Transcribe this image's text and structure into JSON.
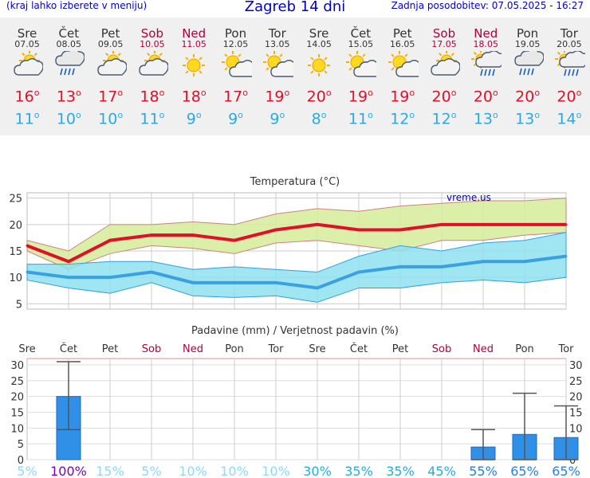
{
  "header": {
    "left_note": "(kraj lahko izberete v meniju)",
    "title": "Zagreb 14 dni",
    "updated": "Zadnja posodobitev: 07.05.2025 - 16:27"
  },
  "days": [
    {
      "name": "Sre",
      "date": "07.05",
      "weekend": false,
      "icon": "partly-cloudy-icon",
      "max": "16",
      "min": "11"
    },
    {
      "name": "Čet",
      "date": "08.05",
      "weekend": false,
      "icon": "rain-cloud-icon",
      "max": "13",
      "min": "10"
    },
    {
      "name": "Pet",
      "date": "09.05",
      "weekend": false,
      "icon": "partly-cloudy-icon",
      "max": "17",
      "min": "10"
    },
    {
      "name": "Sob",
      "date": "10.05",
      "weekend": true,
      "icon": "partly-cloudy-icon",
      "max": "18",
      "min": "11"
    },
    {
      "name": "Ned",
      "date": "11.05",
      "weekend": true,
      "icon": "sun-icon",
      "max": "18",
      "min": "9"
    },
    {
      "name": "Pon",
      "date": "12.05",
      "weekend": false,
      "icon": "sun-cloud-icon",
      "max": "17",
      "min": "9"
    },
    {
      "name": "Tor",
      "date": "13.05",
      "weekend": false,
      "icon": "sun-cloud-icon",
      "max": "19",
      "min": "9"
    },
    {
      "name": "Sre",
      "date": "14.05",
      "weekend": false,
      "icon": "sun-icon",
      "max": "20",
      "min": "8"
    },
    {
      "name": "Čet",
      "date": "15.05",
      "weekend": false,
      "icon": "sun-cloud-icon",
      "max": "19",
      "min": "11"
    },
    {
      "name": "Pet",
      "date": "16.05",
      "weekend": false,
      "icon": "sun-cloud-icon",
      "max": "19",
      "min": "12"
    },
    {
      "name": "Sob",
      "date": "17.05",
      "weekend": true,
      "icon": "partly-cloudy-icon",
      "max": "20",
      "min": "12"
    },
    {
      "name": "Ned",
      "date": "18.05",
      "weekend": true,
      "icon": "sun-rain-icon",
      "max": "20",
      "min": "13"
    },
    {
      "name": "Pon",
      "date": "19.05",
      "weekend": false,
      "icon": "rain-cloud-icon",
      "max": "20",
      "min": "13"
    },
    {
      "name": "Tor",
      "date": "20.05",
      "weekend": false,
      "icon": "sun-rain-icon",
      "max": "20",
      "min": "14"
    }
  ],
  "degree_sign": "o",
  "colors": {
    "max": "#e0102a",
    "min": "#2aaae0",
    "weekend": "#b0003a",
    "bar": "#3090e8",
    "max_band": "#d6ec9a",
    "min_band": "#8ee0f0"
  },
  "chart_data": [
    {
      "type": "line",
      "title": "Temperatura (°C)",
      "watermark": "vreme.us",
      "x": [
        "Sre",
        "Čet",
        "Pet",
        "Sob",
        "Ned",
        "Pon",
        "Tor",
        "Sre",
        "Čet",
        "Pet",
        "Sob",
        "Ned",
        "Pon",
        "Tor"
      ],
      "ylim": [
        4,
        26
      ],
      "yticks": [
        5,
        10,
        15,
        20,
        25
      ],
      "series": [
        {
          "values": [
            16,
            13,
            17,
            18,
            18,
            17,
            19,
            20,
            19,
            19,
            20,
            20,
            20,
            20
          ]
        },
        {
          "values": [
            11,
            10,
            10,
            11,
            9,
            9,
            9,
            8,
            11,
            12,
            12,
            13,
            13,
            14
          ]
        }
      ],
      "bands": [
        {
          "low": [
            15,
            11.5,
            14.5,
            16,
            15.5,
            14.5,
            16.5,
            17,
            16,
            15,
            17,
            17,
            18,
            18.5
          ],
          "high": [
            17,
            15,
            20,
            20,
            20.5,
            20,
            22,
            23,
            22.5,
            23.5,
            24,
            24.5,
            24.5,
            25
          ]
        },
        {
          "low": [
            9.5,
            8,
            7,
            9,
            6.5,
            6.2,
            6.5,
            5.3,
            8,
            8,
            9,
            9.5,
            9,
            10
          ],
          "high": [
            12.5,
            12.5,
            13,
            13,
            11.5,
            12,
            11.5,
            11,
            14,
            16,
            15,
            16.5,
            17,
            18.5
          ]
        }
      ],
      "grid": true
    },
    {
      "type": "bar",
      "title": "Padavine (mm) / Verjetnost padavin (%)",
      "categories": [
        "Sre",
        "Čet",
        "Pet",
        "Sob",
        "Ned",
        "Pon",
        "Tor",
        "Sre",
        "Čet",
        "Pet",
        "Sob",
        "Ned",
        "Pon",
        "Tor"
      ],
      "values": [
        0,
        20,
        0,
        0,
        0,
        0,
        0,
        0,
        0,
        0,
        0,
        4,
        8,
        7
      ],
      "error_low": [
        0,
        9.5,
        0,
        0,
        0,
        0,
        0,
        0,
        0,
        0,
        0,
        0,
        0,
        0
      ],
      "error_high": [
        0,
        31,
        0,
        0,
        0,
        0,
        0,
        0,
        0,
        0,
        0,
        9.5,
        21,
        17
      ],
      "probability": [
        "5%",
        "100%",
        "15%",
        "5%",
        "10%",
        "10%",
        "10%",
        "30%",
        "35%",
        "35%",
        "45%",
        "55%",
        "65%",
        "65%"
      ],
      "probability_colors": [
        "#8fd8f8",
        "#8000c0",
        "#8fd8f8",
        "#8fd8f8",
        "#8fd8f8",
        "#8fd8f8",
        "#8fd8f8",
        "#2aaae0",
        "#2aaae0",
        "#2aaae0",
        "#2aaae0",
        "#2a80e0",
        "#2a80e0",
        "#2a80e0"
      ],
      "ylim": [
        0,
        32
      ],
      "yticks": [
        0,
        5,
        10,
        15,
        20,
        25,
        30
      ]
    }
  ]
}
